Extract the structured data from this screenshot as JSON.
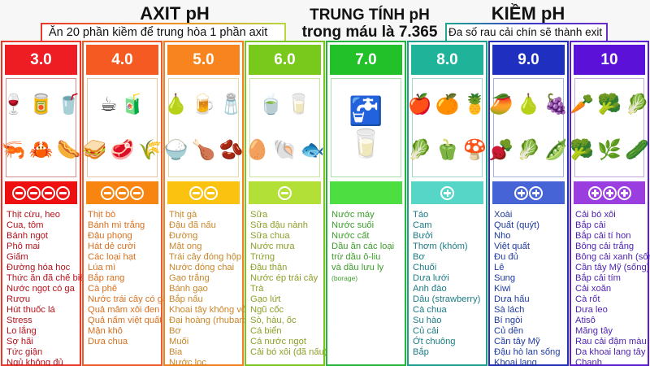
{
  "titles": {
    "acid": "AXIT pH",
    "acid_note": "Ăn 20 phần kiềm để trung hòa 1 phần axit",
    "neutral_line1": "TRUNG TÍNH pH",
    "neutral_line2": "trong máu là 7.365",
    "alkaline": "KIỀM pH",
    "alkaline_note": "Đa số rau cải chín sẽ thành exit"
  },
  "colors": {
    "ph3": "#ee1d24",
    "ph4": "#f55a22",
    "ph5": "#f7841f",
    "ph6": "#79c91d",
    "ph7": "#22c12a",
    "ph8": "#1fb39a",
    "ph9": "#1f2fbf",
    "ph10": "#5c11d8"
  },
  "columns": [
    {
      "ph": "3.0",
      "icons": [
        "wine-bottle",
        "energy-drink-can",
        "soda-can",
        "shrimp",
        "crab",
        "sausage"
      ],
      "signs": [
        "minus",
        "minus",
        "minus",
        "minus"
      ],
      "items": [
        "Thịt cừu, heo",
        "Cua, tôm",
        "Bánh ngọt",
        "Phô mai",
        "Giấm",
        "Đường hóa học",
        "Thức ăn đã chế biến",
        "Nước ngọt có ga",
        "Rượu",
        "Hút thuốc lá",
        "Stress",
        "Lo lắng",
        "Sợ hãi",
        "Tức giận",
        "Ngủ không đủ"
      ]
    },
    {
      "ph": "4.0",
      "icons": [
        "coffee-cup",
        "juice-bottle",
        "sandwich",
        "steak",
        "wheat"
      ],
      "signs": [
        "minus",
        "minus",
        "minus"
      ],
      "items": [
        "Thịt bò",
        "Bánh mì trắng",
        "Đậu phọng",
        "Hát dẻ cười",
        "Các loại hạt",
        "Lúa mì",
        "Bắp rang",
        "Cà phê",
        "Nước trái cây có ga",
        "Quả mâm xôi đen",
        "Quả nấm việt quất",
        "Mận khô",
        "Dưa chua"
      ]
    },
    {
      "ph": "5.0",
      "icons": [
        "canned-pear",
        "beer-mug",
        "flour-bag",
        "rice-bowl",
        "roast-chicken",
        "beans-bowl"
      ],
      "signs": [
        "minus",
        "minus"
      ],
      "items": [
        "Thịt gà",
        "Đậu đã nấu",
        "Đường",
        "Mật ong",
        "Trái cây đóng hộp",
        "Nước đóng chai",
        "Gạo trắng",
        "Bánh gạo",
        "Bắp nấu",
        "Khoai tây không vỏ",
        "Đại hoàng (rhubarb)",
        "Bơ",
        "Muối",
        "Bia",
        "Nước lọc"
      ]
    },
    {
      "ph": "6.0",
      "icons": [
        "tea-cup",
        "milk-carton",
        "egg",
        "clam",
        "fish"
      ],
      "signs": [
        "minus"
      ],
      "items": [
        "Sữa",
        "Sữa đậu nành",
        "Sữa chua",
        "Nước mưa",
        "Trứng",
        "Đậu thận",
        "Nước ép trái cây",
        "Trà",
        "Gạo lứt",
        "Ngũ cốc",
        "Sò, hàu, ốc",
        "Cá biển",
        "Cá nước ngọt",
        "Cải bó xôi (đã nấu)"
      ]
    },
    {
      "ph": "7.0",
      "icons": [
        "water-tap",
        "water-glass"
      ],
      "signs": [],
      "items": [
        "Nước máy",
        "Nước suối",
        "Nước cất",
        "Dầu ăn các loại",
        "trừ dầu ô-liu",
        "và dầu lưu ly",
        "(borage)"
      ]
    },
    {
      "ph": "8.0",
      "icons": [
        "apple",
        "orange",
        "pineapple",
        "radish",
        "bell-pepper",
        "mushroom"
      ],
      "signs": [
        "plus"
      ],
      "items": [
        "Táo",
        "Cam",
        "Bưởi",
        "Thơm (khóm)",
        "Bơ",
        "Chuối",
        "Dưa lưới",
        "Anh đào",
        "Dâu (strawberry)",
        "Cà chua",
        "Su hào",
        "Củ cải",
        "Ớt chuông",
        "Bắp"
      ]
    },
    {
      "ph": "9.0",
      "icons": [
        "mango",
        "papaya",
        "grapes",
        "beetroot",
        "lettuce",
        "green-beans"
      ],
      "signs": [
        "plus",
        "plus"
      ],
      "items": [
        "Xoài",
        "Quất (quýt)",
        "Nho",
        "Việt quất",
        "Đu đủ",
        "Lê",
        "Sung",
        "Kiwi",
        "Dưa hấu",
        "Sà lách",
        "Bí ngòi",
        "Củ dền",
        "Cần tây Mỹ",
        "Đậu hò lan sống",
        "Khoai lang"
      ]
    },
    {
      "ph": "10",
      "icons": [
        "carrot",
        "cauliflower",
        "red-cabbage",
        "broccoli",
        "spinach",
        "celery"
      ],
      "signs": [
        "plus",
        "plus",
        "plus"
      ],
      "items": [
        "Cải bó xôi",
        "Bắp cải",
        "Bắp cải tí hon",
        "Bông cải trắng",
        "Bông cải xanh (sống)",
        "Cần tây Mỹ (sống)",
        "Bắp cải tím",
        "Cải xoăn",
        "Cà rốt",
        "Dưa leo",
        "Atisô",
        "Măng tây",
        "Rau cải đậm màu",
        "Da khoai lang tây",
        "Chanh"
      ]
    }
  ]
}
